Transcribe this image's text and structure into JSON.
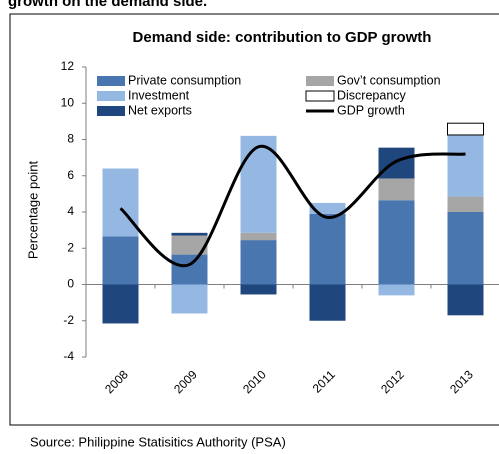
{
  "chart_data": {
    "type": "stacked-bar-line",
    "heading": "growth on the demand side.",
    "title": "Demand side: contribution to GDP growth",
    "y_label": "Percentage point",
    "source": "Source: Philippine Statisitics Authority (PSA)",
    "categories": [
      "2008",
      "2009",
      "2010",
      "2011",
      "2012",
      "2013"
    ],
    "series": [
      {
        "name": "Private consumption",
        "color": "#4a76b0",
        "values": [
          2.65,
          1.65,
          2.45,
          3.9,
          4.65,
          4.0
        ]
      },
      {
        "name": "Gov’t consumption",
        "color": "#a6a6a6",
        "values": [
          0,
          1.05,
          0.4,
          0,
          1.2,
          0.85
        ]
      },
      {
        "name": "Investment",
        "color": "#95b8e3",
        "values": [
          3.75,
          -1.6,
          5.35,
          0.6,
          -0.6,
          3.4
        ]
      },
      {
        "name": "Discrepancy",
        "color": "#ffffff",
        "values": [
          0,
          0,
          0,
          0,
          0,
          0.65
        ]
      },
      {
        "name": "Net exports",
        "color": "#1f467d",
        "values": [
          -2.15,
          0.15,
          -0.55,
          -2.0,
          1.7,
          -1.7
        ]
      },
      {
        "name": "GDP growth",
        "color": "#000000",
        "type": "line",
        "values": [
          4.2,
          1.1,
          7.6,
          3.7,
          6.8,
          7.2
        ]
      }
    ],
    "ylim": [
      -4,
      12
    ],
    "yticks": [
      -4,
      -2,
      0,
      2,
      4,
      6,
      8,
      10,
      12
    ],
    "grid": false
  }
}
